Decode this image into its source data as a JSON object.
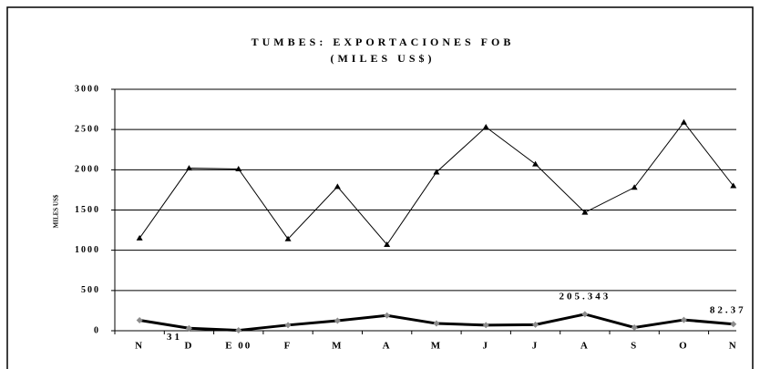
{
  "chart_data": {
    "type": "line",
    "title": "TUMBES: EXPORTACIONES FOB",
    "subtitle": "(MILES US$)",
    "y_label": "MILES US$",
    "categories": [
      "N",
      "D",
      "E 00",
      "F",
      "M",
      "A",
      "M",
      "J",
      "J",
      "A",
      "S",
      "O",
      "N"
    ],
    "series": [
      {
        "color": "#000000",
        "marker": "triangle",
        "values": [
          1150,
          2020,
          2010,
          1140,
          1790,
          1070,
          1970,
          2530,
          2070,
          1470,
          1780,
          2590,
          1800
        ]
      },
      {
        "color": "#000000",
        "marker": "diamond",
        "marker_color": "#8c8c8c",
        "values": [
          130,
          31,
          5,
          70,
          125,
          190,
          90,
          70,
          75,
          205.343,
          40,
          135,
          82.37
        ],
        "value_labels": [
          null,
          "31",
          null,
          null,
          null,
          null,
          null,
          null,
          null,
          "205.343",
          null,
          null,
          "82.37"
        ]
      }
    ],
    "ylim": [
      0,
      3000
    ],
    "yticks": [
      0,
      500,
      1000,
      1500,
      2000,
      2500,
      3000
    ],
    "grid": true
  }
}
